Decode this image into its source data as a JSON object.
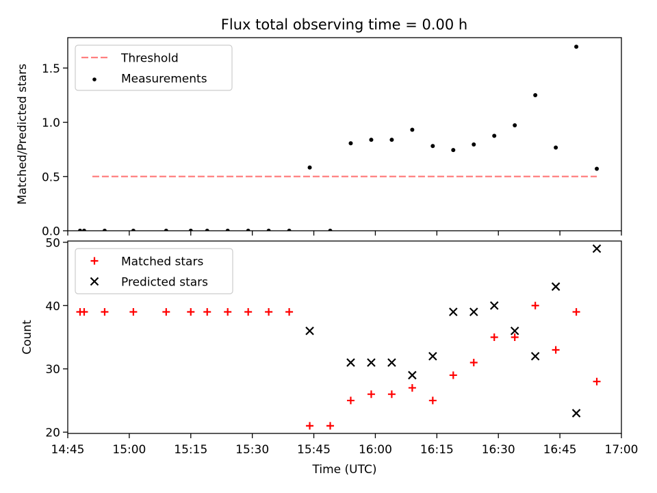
{
  "title": "Flux total observing time = 0.00 h",
  "chart_data": [
    {
      "type": "scatter",
      "ylabel": "Matched/Predicted stars",
      "ylim": [
        0,
        1.78
      ],
      "yticks": [
        0.0,
        0.5,
        1.0,
        1.5
      ],
      "ytick_labels": [
        "0.0",
        "0.5",
        "1.0",
        "1.5"
      ],
      "legend": "top-left",
      "series": [
        {
          "name": "Threshold",
          "kind": "dashed-line",
          "color": "#ff7f7f",
          "x": [
            "14:51",
            "16:54"
          ],
          "y": [
            0.5,
            0.5
          ]
        },
        {
          "name": "Measurements",
          "kind": "dot",
          "color": "#000000",
          "x": [
            "14:48",
            "14:49",
            "14:54",
            "15:01",
            "15:09",
            "15:15",
            "15:19",
            "15:24",
            "15:29",
            "15:34",
            "15:39",
            "15:44",
            "15:49",
            "15:54",
            "15:59",
            "16:04",
            "16:09",
            "16:14",
            "16:19",
            "16:24",
            "16:29",
            "16:34",
            "16:39",
            "16:44",
            "16:49",
            "16:54"
          ],
          "y": [
            0.0,
            0.0,
            0.0,
            0.0,
            0.0,
            0.0,
            0.0,
            0.0,
            0.0,
            0.0,
            0.0,
            0.583,
            0.0,
            0.806,
            0.839,
            0.839,
            0.931,
            0.781,
            0.744,
            0.795,
            0.875,
            0.972,
            1.25,
            0.767,
            1.696,
            0.571
          ]
        }
      ]
    },
    {
      "type": "scatter",
      "ylabel": "Count",
      "xlabel": "Time (UTC)",
      "ylim": [
        19.8,
        50.2
      ],
      "yticks": [
        20,
        30,
        40,
        50
      ],
      "ytick_labels": [
        "20",
        "30",
        "40",
        "50"
      ],
      "xlim": [
        "14:45",
        "17:00"
      ],
      "xticks": [
        "14:45",
        "15:00",
        "15:15",
        "15:30",
        "15:45",
        "16:00",
        "16:15",
        "16:30",
        "16:45",
        "17:00"
      ],
      "xtick_labels": [
        "14:45",
        "15:00",
        "15:15",
        "15:30",
        "15:45",
        "16:00",
        "16:15",
        "16:30",
        "16:45",
        "17:00"
      ],
      "legend": "top-left",
      "series": [
        {
          "name": "Matched stars",
          "kind": "plus",
          "color": "#ff0000",
          "x": [
            "14:48",
            "14:49",
            "14:54",
            "15:01",
            "15:09",
            "15:15",
            "15:19",
            "15:24",
            "15:29",
            "15:34",
            "15:39",
            "15:44",
            "15:49",
            "15:54",
            "15:59",
            "16:04",
            "16:09",
            "16:14",
            "16:19",
            "16:24",
            "16:29",
            "16:34",
            "16:39",
            "16:44",
            "16:49",
            "16:54"
          ],
          "y": [
            39,
            39,
            39,
            39,
            39,
            39,
            39,
            39,
            39,
            39,
            39,
            21,
            21,
            25,
            26,
            26,
            27,
            25,
            29,
            31,
            35,
            35,
            40,
            33,
            39,
            28
          ]
        },
        {
          "name": "Predicted stars",
          "kind": "x",
          "color": "#000000",
          "x": [
            "15:44",
            "15:54",
            "15:59",
            "16:04",
            "16:09",
            "16:14",
            "16:19",
            "16:24",
            "16:29",
            "16:34",
            "16:39",
            "16:44",
            "16:49",
            "16:54"
          ],
          "y": [
            36,
            31,
            31,
            31,
            29,
            32,
            39,
            39,
            40,
            36,
            32,
            43,
            23,
            49
          ]
        }
      ]
    }
  ]
}
